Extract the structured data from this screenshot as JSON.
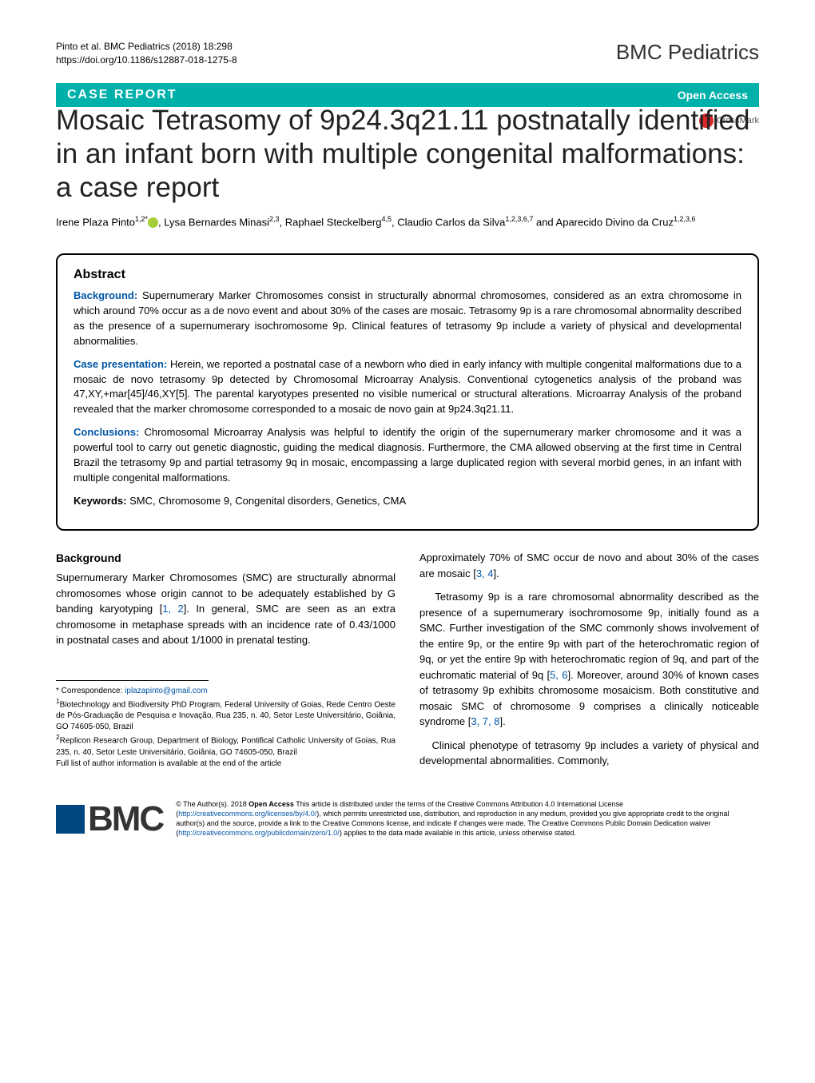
{
  "header": {
    "citation": "Pinto et al. BMC Pediatrics (2018) 18:298",
    "doi": "https://doi.org/10.1186/s12887-018-1275-8",
    "journal_logo": "BMC Pediatrics"
  },
  "article_bar": {
    "type": "CASE REPORT",
    "access": "Open Access"
  },
  "crossmark": "CrossMark",
  "title": "Mosaic Tetrasomy of 9p24.3q21.11 postnatally identified in an infant born with multiple congenital malformations: a case report",
  "authors": {
    "a1_name": "Irene Plaza Pinto",
    "a1_aff": "1,2*",
    "a2_name": ", Lysa Bernardes Minasi",
    "a2_aff": "2,3",
    "a3_name": ", Raphael Steckelberg",
    "a3_aff": "4,5",
    "a4_name": ", Claudio Carlos da Silva",
    "a4_aff": "1,2,3,6,7",
    "a5_name": " and Aparecido Divino da Cruz",
    "a5_aff": "1,2,3,6"
  },
  "abstract": {
    "heading": "Abstract",
    "background_label": "Background:",
    "background_text": " Supernumerary Marker Chromosomes consist in structurally abnormal chromosomes, considered as an extra chromosome in which around 70% occur as a de novo event and about 30% of the cases are mosaic. Tetrasomy 9p is a rare chromosomal abnormality described as the presence of a supernumerary isochromosome 9p. Clinical features of tetrasomy 9p include a variety of physical and developmental abnormalities.",
    "case_label": "Case presentation:",
    "case_text": " Herein, we reported a postnatal case of a newborn who died in early infancy with multiple congenital malformations due to a mosaic de novo tetrasomy 9p detected by Chromosomal Microarray Analysis. Conventional cytogenetics analysis of the proband was 47,XY,+mar[45]/46,XY[5]. The parental karyotypes presented no visible numerical or structural alterations. Microarray Analysis of the proband revealed that the marker chromosome corresponded to a mosaic de novo gain at 9p24.3q21.11.",
    "conclusions_label": "Conclusions:",
    "conclusions_text": " Chromosomal Microarray Analysis was helpful to identify the origin of the supernumerary marker chromosome and it was a powerful tool to carry out genetic diagnostic, guiding the medical diagnosis. Furthermore, the CMA allowed observing at the first time in Central Brazil the tetrasomy 9p and partial tetrasomy 9q in mosaic, encompassing a large duplicated region with several morbid genes, in an infant with multiple congenital malformations.",
    "keywords_label": "Keywords:",
    "keywords_text": " SMC, Chromosome 9, Congenital disorders, Genetics, CMA"
  },
  "body": {
    "background_heading": "Background",
    "left_p1a": "Supernumerary Marker Chromosomes (SMC) are structurally abnormal chromosomes whose origin cannot to be adequately established by G banding karyotyping [",
    "left_p1_refs": "1, 2",
    "left_p1b": "]. In general, SMC are seen as an extra chromosome in metaphase spreads with an incidence rate of 0.43/1000 in postnatal cases and about 1/1000 in prenatal testing.",
    "right_p1a": "Approximately 70% of SMC occur de novo and about 30% of the cases are mosaic [",
    "right_p1_refs": "3, 4",
    "right_p1b": "].",
    "right_p2a": "Tetrasomy 9p is a rare chromosomal abnormality described as the presence of a supernumerary isochromosome 9p, initially found as a SMC. Further investigation of the SMC commonly shows involvement of the entire 9p, or the entire 9p with part of the heterochromatic region of 9q, or yet the entire 9p with heterochromatic region of 9q, and part of the euchromatic material of 9q [",
    "right_p2_refs1": "5, 6",
    "right_p2b": "]. Moreover, around 30% of known cases of tetrasomy 9p exhibits chromosome mosaicism. Both constitutive and mosaic SMC of chromosome 9 comprises a clinically noticeable syndrome [",
    "right_p2_refs2": "3, 7, 8",
    "right_p2c": "].",
    "right_p3": "Clinical phenotype of tetrasomy 9p includes a variety of physical and developmental abnormalities. Commonly,"
  },
  "footnotes": {
    "corr_label": "* Correspondence: ",
    "corr_email": "iplazapinto@gmail.com",
    "aff1": "Biotechnology and Biodiversity PhD Program, Federal University of Goias, Rede Centro Oeste de Pós-Graduação de Pesquisa e Inovação, Rua 235, n. 40, Setor Leste Universitário, Goiânia, GO 74605-050, Brazil",
    "aff2": "Replicon Research Group, Department of Biology, Pontifical Catholic University of Goias, Rua 235, n. 40, Setor Leste Universitário, Goiânia, GO 74605-050, Brazil",
    "full_list": "Full list of author information is available at the end of the article"
  },
  "license": {
    "bmc": "BMC",
    "text_a": "© The Author(s). 2018 ",
    "open_access_bold": "Open Access",
    "text_b": " This article is distributed under the terms of the Creative Commons Attribution 4.0 International License (",
    "link1": "http://creativecommons.org/licenses/by/4.0/",
    "text_c": "), which permits unrestricted use, distribution, and reproduction in any medium, provided you give appropriate credit to the original author(s) and the source, provide a link to the Creative Commons license, and indicate if changes were made. The Creative Commons Public Domain Dedication waiver (",
    "link2": "http://creativecommons.org/publicdomain/zero/1.0/",
    "text_d": ") applies to the data made available in this article, unless otherwise stated."
  },
  "colors": {
    "teal": "#00b1aa",
    "blue_label": "#0056a6",
    "crossmark_red": "#d62828",
    "orcid_green": "#a6ce39",
    "bmc_blue": "#004680"
  }
}
